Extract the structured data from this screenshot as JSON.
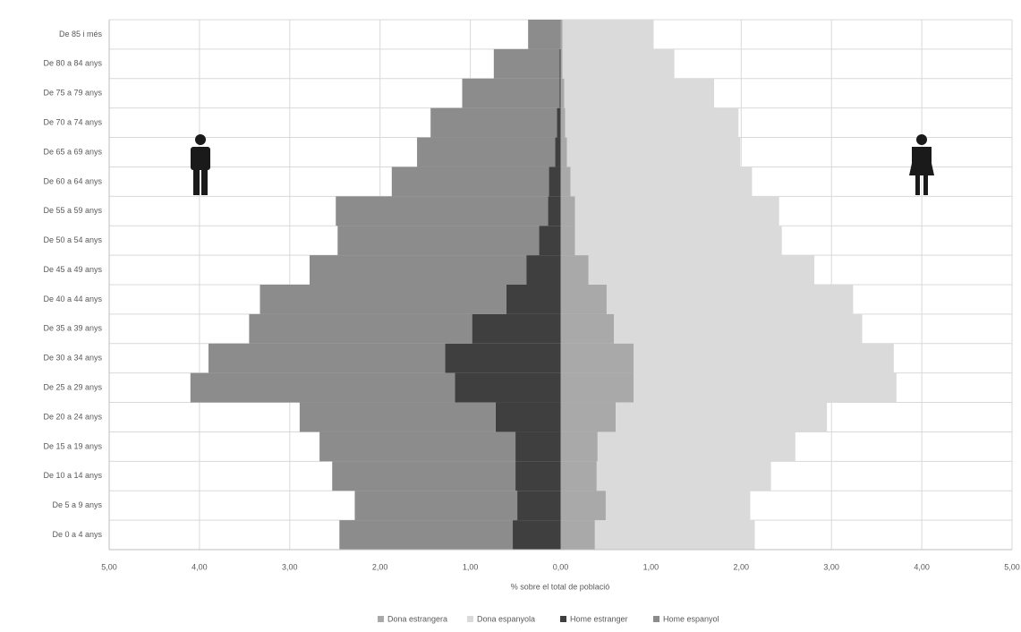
{
  "chart_data": {
    "type": "pyramid",
    "orientation": "horizontal",
    "stacked": true,
    "x_label": "% sobre el total de població",
    "categories": [
      "De 0 a 4 anys",
      "De 5 a 9 anys",
      "De 10 a 14 anys",
      "De 15 a 19 anys",
      "De 20 a 24 anys",
      "De 25 a 29 anys",
      "De 30 a 34 anys",
      "De 35 a 39 anys",
      "De 40 a 44 anys",
      "De 45 a 49 anys",
      "De 50 a 54 anys",
      "De 55 a 59 anys",
      "De 60 a 64 anys",
      "De 65 a 69 anys",
      "De 70 a 74 anys",
      "De 75 a 79 anys",
      "De 80 a 84 anys",
      "De 85 i més"
    ],
    "series": [
      {
        "name": "Dona estrangera",
        "color": "#a9a9a9",
        "values": [
          0.38,
          0.5,
          0.4,
          0.41,
          0.61,
          0.81,
          0.81,
          0.59,
          0.51,
          0.31,
          0.16,
          0.16,
          0.11,
          0.07,
          0.05,
          0.04,
          0.02,
          0.02
        ]
      },
      {
        "name": "Dona espanyola",
        "color": "#dadada",
        "values": [
          1.77,
          1.6,
          1.93,
          2.19,
          2.34,
          2.91,
          2.88,
          2.75,
          2.73,
          2.5,
          2.29,
          2.26,
          2.01,
          1.92,
          1.92,
          1.66,
          1.24,
          1.01
        ]
      },
      {
        "name": "Home estranger",
        "color": "#3f3f3f",
        "values": [
          -0.53,
          -0.48,
          -0.5,
          -0.5,
          -0.72,
          -1.17,
          -1.28,
          -0.98,
          -0.6,
          -0.38,
          -0.24,
          -0.14,
          -0.13,
          -0.06,
          -0.04,
          -0.01,
          -0.01,
          0
        ]
      },
      {
        "name": "Home espanyol",
        "color": "#8c8c8c",
        "values": [
          -1.92,
          -1.8,
          -2.03,
          -2.17,
          -2.17,
          -2.93,
          -2.62,
          -2.47,
          -2.73,
          -2.4,
          -2.23,
          -2.35,
          -1.74,
          -1.53,
          -1.4,
          -1.08,
          -0.73,
          -0.36
        ]
      }
    ],
    "xlim": [
      -5,
      5
    ],
    "xticks": [
      {
        "value": -5,
        "label": "5,00"
      },
      {
        "value": -4,
        "label": "4,00"
      },
      {
        "value": -3,
        "label": "3,00"
      },
      {
        "value": -2,
        "label": "2,00"
      },
      {
        "value": -1,
        "label": "1,00"
      },
      {
        "value": 0,
        "label": "0,00"
      },
      {
        "value": 1,
        "label": "1,00"
      },
      {
        "value": 2,
        "label": "2,00"
      },
      {
        "value": 3,
        "label": "3,00"
      },
      {
        "value": 4,
        "label": "4,00"
      },
      {
        "value": 5,
        "label": "5,00"
      }
    ],
    "grid": true,
    "legend": "bottom"
  }
}
